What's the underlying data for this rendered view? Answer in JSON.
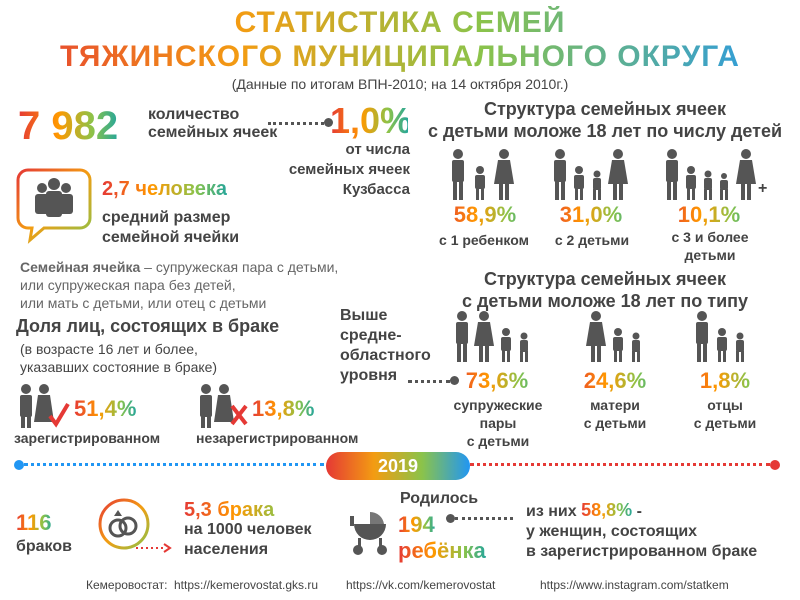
{
  "header": {
    "title_line1": "СТАТИСТИКА СЕМЕЙ",
    "title_line2": "ТЯЖИНСКОГО МУНИЦИПАЛЬНОГО ОКРУГА",
    "subtitle": "(Данные по итогам ВПН-2010; на 14 октября 2010г.)"
  },
  "families": {
    "count": "7 982",
    "count_label_1": "количество",
    "count_label_2": "семейных ячеек",
    "share": "1,0%",
    "share_label_1": "от числа",
    "share_label_2": "семейных ячеек",
    "share_label_3": "Кузбасса"
  },
  "avg_size": {
    "value": "2,7 человека",
    "label_1": "средний размер",
    "label_2": "семейной ячейки"
  },
  "definition": {
    "term": "Семейная ячейка",
    "line1_rest": " – супружеская пара с детьми,",
    "line2": "или супружеская пара без детей,",
    "line3": "или мать с детьми, или отец с детьми"
  },
  "marriage": {
    "heading": "Доля лиц, состоящих в браке",
    "sub_1": "(в возрасте 16 лет и более,",
    "sub_2": "указавших состояние в браке)",
    "registered_value": "51,4%",
    "registered_label": "зарегистрированном",
    "unregistered_value": "13,8%",
    "unregistered_label": "незарегистрированном"
  },
  "by_children": {
    "heading_1": "Структура семейных ячеек",
    "heading_2": "с детьми моложе 18 лет по числу детей",
    "items": [
      {
        "value": "58,9%",
        "label_1": "с 1 ребенком",
        "label_2": ""
      },
      {
        "value": "31,0%",
        "label_1": "с 2 детьми",
        "label_2": ""
      },
      {
        "value": "10,1%",
        "label_1": "с 3 и более",
        "label_2": "детьми"
      }
    ],
    "plus": "+"
  },
  "by_type": {
    "heading_1": "Структура семейных ячеек",
    "heading_2": "с детьми моложе 18 лет по типу",
    "above_1": "Выше",
    "above_2": "средне-",
    "above_3": "областного",
    "above_4": "уровня",
    "items": [
      {
        "value": "73,6%",
        "label_1": "супружеские",
        "label_2": "пары",
        "label_3": "с детьми"
      },
      {
        "value": "24,6%",
        "label_1": "матери",
        "label_2": "с детьми",
        "label_3": ""
      },
      {
        "value": "1,8%",
        "label_1": "отцы",
        "label_2": "с детьми",
        "label_3": ""
      }
    ]
  },
  "year_bar": {
    "year": "2019"
  },
  "y2019": {
    "marriages_value": "116",
    "marriages_label": "браков",
    "rate_1": "5,3 брака",
    "rate_2": "на 1000 человек",
    "rate_3": "населения",
    "born_label": "Родилось",
    "born_value": "194",
    "born_unit": "ребёнка",
    "of_them_prefix": "из них ",
    "of_them_value": "58,8%",
    "of_them_suffix": " -",
    "of_them_2": "у женщин, состоящих",
    "of_them_3": "в зарегистрированном браке"
  },
  "footer": {
    "source": "Кемеровостат:",
    "link1": "https://kemerovostat.gks.ru",
    "link2": "https://vk.com/kemerovostat",
    "link3": "https://www.instagram.com/statkem"
  },
  "colors": {
    "icon": "#555555",
    "accent_red": "#e53935",
    "accent_orange": "#f39c12",
    "accent_green": "#8bc34a",
    "accent_blue": "#2196f3"
  }
}
